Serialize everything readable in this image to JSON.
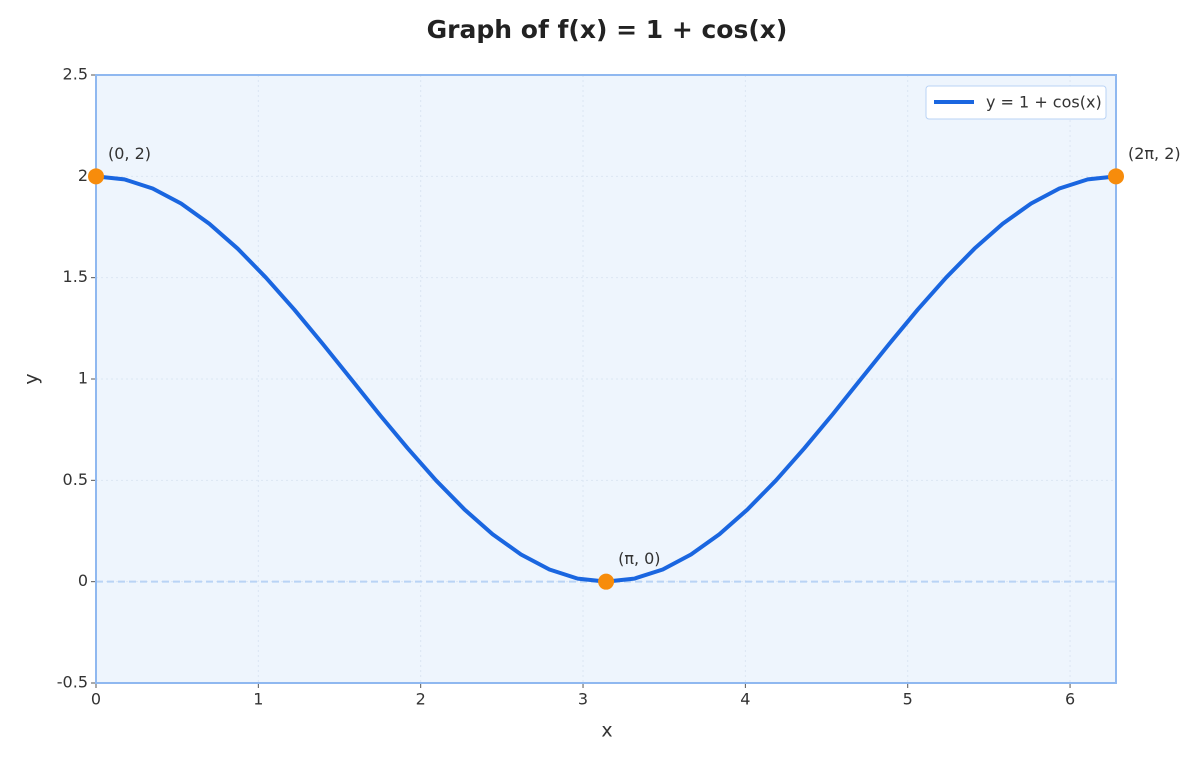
{
  "chart_data": {
    "type": "line",
    "title": "Graph of f(x) = 1 + cos(x)",
    "xlabel": "x",
    "ylabel": "y",
    "xlim": [
      0,
      6.283
    ],
    "ylim": [
      -0.5,
      2.5
    ],
    "xticks": [
      0,
      1,
      2,
      3,
      4,
      5,
      6
    ],
    "yticks": [
      -0.5,
      0,
      0.5,
      1,
      1.5,
      2,
      2.5
    ],
    "grid": true,
    "legend": "upper right",
    "x": [
      0,
      0.175,
      0.349,
      0.524,
      0.698,
      0.873,
      1.047,
      1.222,
      1.396,
      1.571,
      1.745,
      1.92,
      2.094,
      2.269,
      2.443,
      2.618,
      2.793,
      2.967,
      3.142,
      3.316,
      3.491,
      3.665,
      3.84,
      4.014,
      4.189,
      4.363,
      4.538,
      4.712,
      4.887,
      5.061,
      5.236,
      5.411,
      5.585,
      5.76,
      5.934,
      6.109,
      6.283
    ],
    "series": [
      {
        "name": "y = 1 + cos(x)",
        "color": "#1a66e0",
        "values": [
          2,
          1.985,
          1.94,
          1.866,
          1.766,
          1.643,
          1.5,
          1.342,
          1.174,
          1,
          0.826,
          0.658,
          0.5,
          0.357,
          0.234,
          0.134,
          0.06,
          0.015,
          0,
          0.015,
          0.06,
          0.134,
          0.234,
          0.357,
          0.5,
          0.658,
          0.826,
          1,
          1.174,
          1.342,
          1.5,
          1.643,
          1.766,
          1.866,
          1.94,
          1.985,
          2
        ]
      }
    ],
    "reference_line": {
      "y": 0,
      "color": "#b9d3f5"
    },
    "annotations": {
      "color": "#f78c0b",
      "points": [
        {
          "x": 0,
          "y": 2,
          "text": "(0, 2)"
        },
        {
          "x": 3.142,
          "y": 0,
          "text": "(π, 0)"
        },
        {
          "x": 6.283,
          "y": 2,
          "text": "(2π, 2)"
        }
      ]
    }
  }
}
